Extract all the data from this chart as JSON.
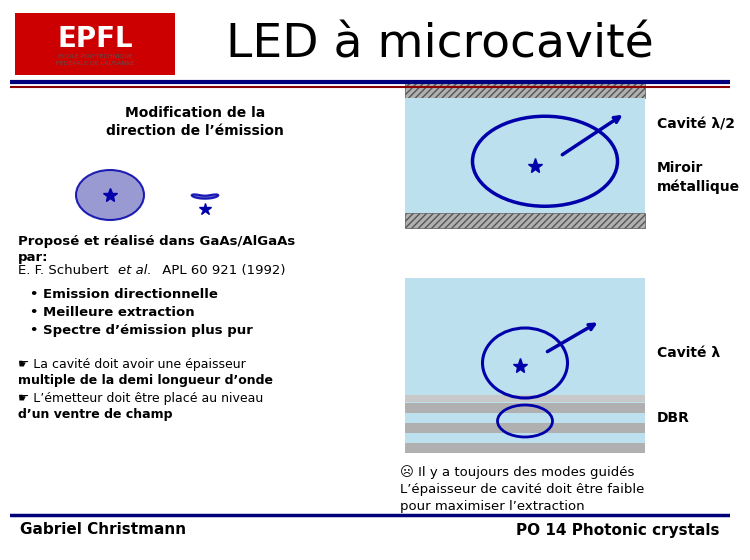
{
  "title": "LED à microcavité",
  "bg_color": "#ffffff",
  "title_color": "#000000",
  "title_fontsize": 34,
  "logo_red": "#cc0000",
  "body_blue": "#0000aa",
  "cavity_bg": "#bde0ef",
  "text_blocks": {
    "mod_direction": "Modification de la\ndirection de l’émission",
    "propose_bold": "Proposé et réalisé dans GaAs/AlGaAs\npar:",
    "propose_normal": "E. F. Schubert ",
    "propose_italic": "et al.",
    "propose_end": " APL 60 921 (1992)",
    "bullets": "• Emission directionnelle\n• Meilleure extraction\n• Spectre d’émission plus pur",
    "cavite_half": "Cavité λ/2",
    "miroir": "Miroir\nmétallique",
    "cavite_full": "Cavité λ",
    "dbr": "DBR",
    "note1a": "☛ La cavité doit avoir une épaisseur",
    "note1b": "multiple de la demi longueur d’onde",
    "note1c": "☛ L’émetteur doit être placé au niveau",
    "note1d": "d’un ventre de champ",
    "note2": "☹ Il y a toujours des modes guidés\nL’épaisseur de cavité doit être faible\npour maximiser l’extraction",
    "footer_left": "Gabriel Christmann",
    "footer_right": "PO 14 Photonic crystals"
  }
}
